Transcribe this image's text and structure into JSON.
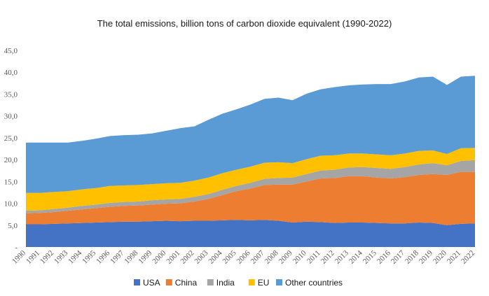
{
  "chart_data": {
    "type": "area",
    "stacked": true,
    "title": "The total emissions, billion tons of carbon dioxide equivalent (1990-2022)",
    "xlabel": "",
    "ylabel": "",
    "ylim": [
      0,
      45
    ],
    "yticks": [
      "-",
      "5,0",
      "10,0",
      "15,0",
      "20,0",
      "25,0",
      "30,0",
      "35,0",
      "40,0",
      "45,0"
    ],
    "grid": false,
    "legend_position": "bottom",
    "x": [
      "1990",
      "1991",
      "1992",
      "1993",
      "1994",
      "1995",
      "1996",
      "1997",
      "1998",
      "1999",
      "2000",
      "2001",
      "2002",
      "2003",
      "2004",
      "2005",
      "2006",
      "2007",
      "2008",
      "2009",
      "2010",
      "2011",
      "2012",
      "2013",
      "2014",
      "2015",
      "2016",
      "2017",
      "2018",
      "2019",
      "2020",
      "2021",
      "2022"
    ],
    "series": [
      {
        "name": "USA",
        "color": "#4472c4",
        "values": [
          5.2,
          5.2,
          5.3,
          5.4,
          5.5,
          5.6,
          5.7,
          5.8,
          5.8,
          5.9,
          6.0,
          5.9,
          6.0,
          6.0,
          6.1,
          6.2,
          6.1,
          6.2,
          6.0,
          5.6,
          5.8,
          5.7,
          5.5,
          5.6,
          5.6,
          5.5,
          5.4,
          5.4,
          5.6,
          5.5,
          5.0,
          5.3,
          5.4
        ]
      },
      {
        "name": "China",
        "color": "#ed7d31",
        "values": [
          2.5,
          2.6,
          2.7,
          2.9,
          3.1,
          3.3,
          3.5,
          3.6,
          3.7,
          3.8,
          3.9,
          4.1,
          4.4,
          5.0,
          5.8,
          6.6,
          7.3,
          8.0,
          8.3,
          8.7,
          9.2,
          10.0,
          10.3,
          10.6,
          10.6,
          10.4,
          10.3,
          10.6,
          10.9,
          11.2,
          11.5,
          11.9,
          11.8
        ]
      },
      {
        "name": "India",
        "color": "#a5a5a5",
        "values": [
          0.6,
          0.6,
          0.7,
          0.7,
          0.8,
          0.8,
          0.9,
          0.9,
          0.9,
          1.0,
          1.0,
          1.0,
          1.1,
          1.1,
          1.2,
          1.2,
          1.3,
          1.4,
          1.5,
          1.6,
          1.7,
          1.8,
          1.9,
          2.0,
          2.1,
          2.2,
          2.2,
          2.3,
          2.4,
          2.5,
          2.2,
          2.5,
          2.7
        ]
      },
      {
        "name": "EU",
        "color": "#ffc000",
        "values": [
          4.1,
          4.0,
          3.9,
          3.8,
          3.8,
          3.8,
          3.9,
          3.8,
          3.8,
          3.7,
          3.7,
          3.7,
          3.7,
          3.8,
          3.8,
          3.7,
          3.7,
          3.7,
          3.6,
          3.3,
          3.4,
          3.4,
          3.3,
          3.2,
          3.1,
          3.1,
          3.1,
          3.1,
          3.1,
          2.9,
          2.6,
          2.9,
          2.8
        ]
      },
      {
        "name": "Other countries",
        "color": "#5b9bd5",
        "values": [
          11.5,
          11.5,
          11.3,
          11.1,
          11.1,
          11.3,
          11.4,
          11.5,
          11.5,
          11.6,
          12.0,
          12.5,
          12.4,
          13.2,
          13.6,
          13.8,
          14.2,
          14.6,
          14.8,
          14.4,
          15.0,
          15.2,
          15.6,
          15.6,
          15.8,
          16.1,
          16.3,
          16.5,
          16.8,
          16.9,
          15.8,
          16.4,
          16.5
        ]
      }
    ]
  }
}
